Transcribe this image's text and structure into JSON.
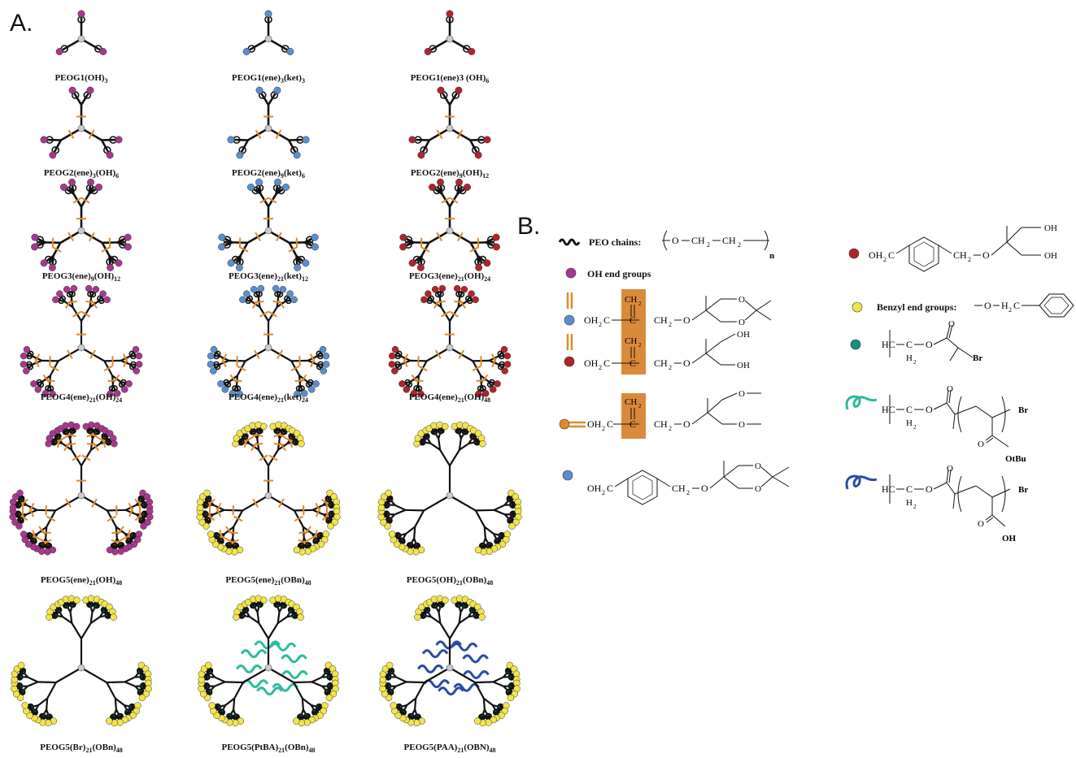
{
  "panel_a_label": "A.",
  "panel_b_label": "B.",
  "colors": {
    "oh_end": "#a8378f",
    "ketal_blue": "#5a8fcf",
    "diol_red": "#b0242a",
    "ene_orange": "#e08a2a",
    "benzyl_yellow": "#f2e44a",
    "bromo_green": "#1a8f7a",
    "ptba_teal": "#2bbb9e",
    "paa_blue": "#2a4aa8",
    "highlight_box": "#d98a3a",
    "core_grey": "#cccccc"
  },
  "panel_a": {
    "rows": [
      [
        {
          "name": "PEOG1",
          "parts": [
            [
              "",
              "(OH)"
            ],
            [
              "3",
              ""
            ]
          ]
        },
        {
          "name": "PEOG1",
          "parts": [
            [
              "",
              "(ene)"
            ],
            [
              "3",
              ""
            ],
            [
              "",
              "(ket)"
            ],
            [
              "3",
              ""
            ]
          ]
        },
        {
          "name": "PEOG1",
          "parts": [
            [
              "",
              "(ene)3 (OH)"
            ],
            [
              "6",
              ""
            ]
          ]
        }
      ],
      [
        {
          "name": "PEOG2",
          "parts": [
            [
              "",
              "(ene)"
            ],
            [
              "3",
              ""
            ],
            [
              "",
              "(OH)"
            ],
            [
              "6",
              ""
            ]
          ]
        },
        {
          "name": "PEOG2",
          "parts": [
            [
              "",
              "(ene)"
            ],
            [
              "9",
              ""
            ],
            [
              "",
              "(ket)"
            ],
            [
              "6",
              ""
            ]
          ]
        },
        {
          "name": "PEOG2",
          "parts": [
            [
              "",
              "(ene)"
            ],
            [
              "9",
              ""
            ],
            [
              "",
              "(OH)"
            ],
            [
              "12",
              ""
            ]
          ]
        }
      ]
    ],
    "captions": [
      [
        "PEOG1(OH)|3",
        "PEOG1(ene)|3|(ket)|3",
        "PEOG1(ene)3 (OH)|6"
      ],
      [
        "PEOG2(ene)|3|(OH)|6",
        "PEOG2(ene)|9|(ket)|6",
        "PEOG2(ene)|9|(OH)|12"
      ],
      [
        "PEOG3(ene)|9|(OH)|12",
        "PEOG3(ene)|21|(ket)|12",
        "PEOG3(ene)|21|(OH)|24"
      ],
      [
        "PEOG4(ene)|21|(OH)|24",
        "PEOG4(ene)|21|(ket)|24",
        "PEOG4(ene)|21|(OH)|48"
      ],
      [
        "PEOG5(ene)|21|(OH)|48",
        "PEOG5(ene)|21|(OBn)|48",
        "PEOG5(OH)|21|(OBn)|48"
      ],
      [
        "PEOG5(Br)|21|(OBn)|48",
        "PEOG5(PtBA)|21|(OBn)|48",
        "PEOG5(PAA)|21|(OBN)|48"
      ]
    ]
  },
  "panel_b": {
    "peo_chains_label": "PEO chains:",
    "peo_formula": [
      "O",
      "CH",
      "2",
      "CH",
      "2",
      "n"
    ],
    "oh_end_groups_label": "OH end groups",
    "benzyl_label": "Benzyl end groups:",
    "chem": {
      "oh2c": "OH",
      "h2c_sub": "2",
      "c": "C",
      "ch2": "CH",
      "ch2_sub": "2",
      "o": "O",
      "oh": "OH",
      "hc": "HC",
      "h2": "H",
      "br": "Br",
      "otbu": "OtBu"
    }
  }
}
